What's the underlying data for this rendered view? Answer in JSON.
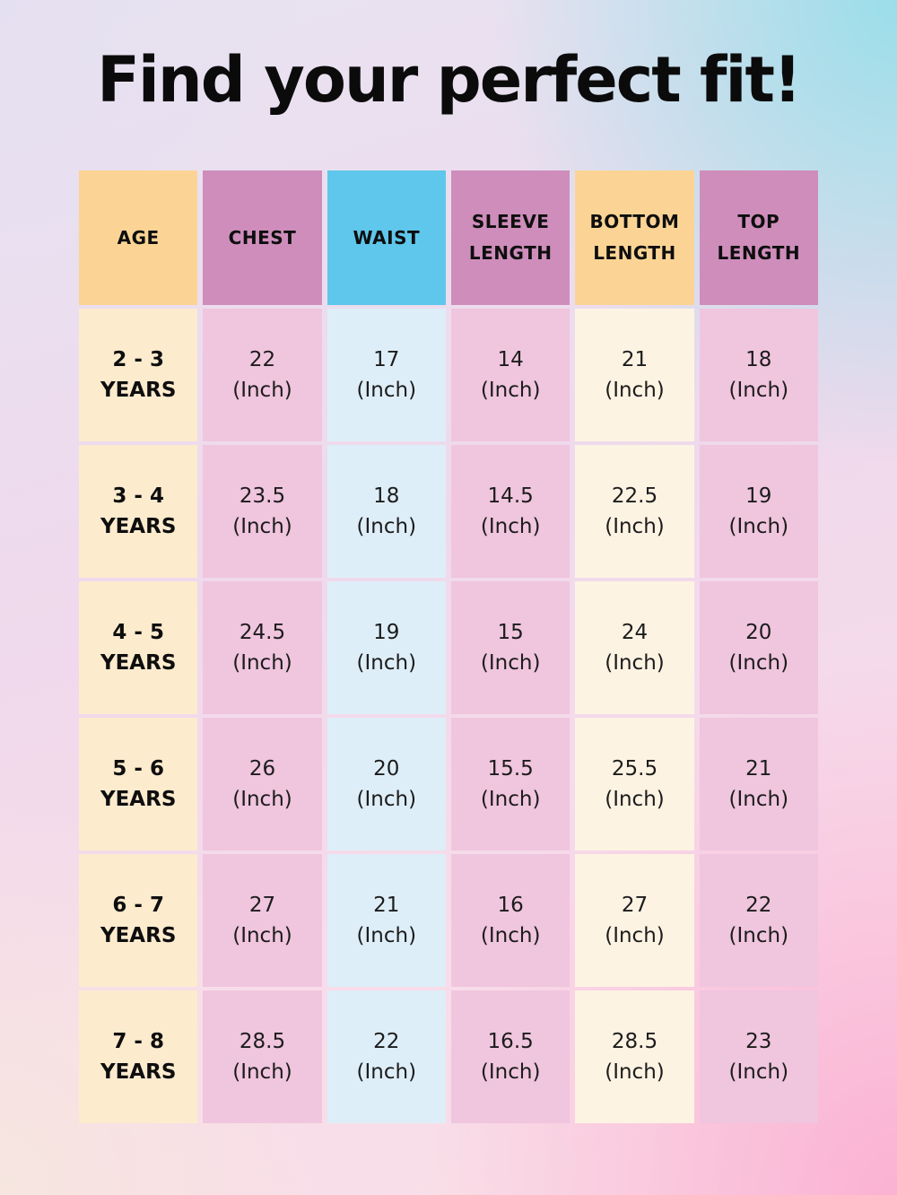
{
  "page": {
    "title": "Find your perfect fit!"
  },
  "colors": {
    "background_top_left": "#E7E3F2",
    "background_top_right": "#ADE4EC",
    "background_bottom_left": "#F6E8E2",
    "background_bottom_right": "#FBB8D5",
    "title_text": "#0B0B0B",
    "header_peach": "#FBD495",
    "header_orchid": "#CE8DBB",
    "header_blue": "#5EC7EB",
    "cell_cream": "#FDEBCE",
    "cell_pink": "#F0C5DE",
    "cell_blue": "#DEEEF8",
    "cell_light_cream": "#FDF3E3"
  },
  "table": {
    "headers": [
      "AGE",
      "CHEST",
      "WAIST",
      "SLEEVE LENGTH",
      "BOTTOM LENGTH",
      "TOP LENGTH"
    ],
    "unit": "(Inch)",
    "rows": [
      {
        "age": [
          "2 - 3",
          "YEARS"
        ],
        "values": [
          "22",
          "17",
          "14",
          "21",
          "18"
        ]
      },
      {
        "age": [
          "3 - 4",
          "YEARS"
        ],
        "values": [
          "23.5",
          "18",
          "14.5",
          "22.5",
          "19"
        ]
      },
      {
        "age": [
          "4 - 5",
          "YEARS"
        ],
        "values": [
          "24.5",
          "19",
          "15",
          "24",
          "20"
        ]
      },
      {
        "age": [
          "5 - 6",
          "YEARS"
        ],
        "values": [
          "26",
          "20",
          "15.5",
          "25.5",
          "21"
        ]
      },
      {
        "age": [
          "6 - 7",
          "YEARS"
        ],
        "values": [
          "27",
          "21",
          "16",
          "27",
          "22"
        ]
      },
      {
        "age": [
          "7 - 8",
          "YEARS"
        ],
        "values": [
          "28.5",
          "22",
          "16.5",
          "28.5",
          "23"
        ]
      }
    ]
  },
  "chart_data": {
    "type": "table",
    "title": "Find your perfect fit!",
    "columns": [
      "AGE",
      "CHEST",
      "WAIST",
      "SLEEVE LENGTH",
      "BOTTOM LENGTH",
      "TOP LENGTH"
    ],
    "unit": "Inch",
    "rows": [
      {
        "age": "2 - 3 YEARS",
        "chest": 22,
        "waist": 17,
        "sleeve_length": 14,
        "bottom_length": 21,
        "top_length": 18
      },
      {
        "age": "3 - 4 YEARS",
        "chest": 23.5,
        "waist": 18,
        "sleeve_length": 14.5,
        "bottom_length": 22.5,
        "top_length": 19
      },
      {
        "age": "4 - 5 YEARS",
        "chest": 24.5,
        "waist": 19,
        "sleeve_length": 15,
        "bottom_length": 24,
        "top_length": 20
      },
      {
        "age": "5 - 6 YEARS",
        "chest": 26,
        "waist": 20,
        "sleeve_length": 15.5,
        "bottom_length": 25.5,
        "top_length": 21
      },
      {
        "age": "6 - 7 YEARS",
        "chest": 27,
        "waist": 21,
        "sleeve_length": 16,
        "bottom_length": 27,
        "top_length": 22
      },
      {
        "age": "7 - 8 YEARS",
        "chest": 28.5,
        "waist": 22,
        "sleeve_length": 16.5,
        "bottom_length": 28.5,
        "top_length": 23
      }
    ]
  }
}
